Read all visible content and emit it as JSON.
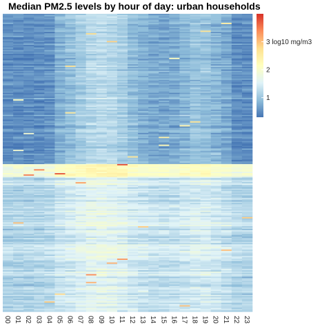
{
  "chart_data": {
    "type": "heatmap",
    "title": "Median PM2.5 levels by hour of day: urban households",
    "xlabel": "",
    "ylabel": "",
    "x": [
      "00",
      "01",
      "02",
      "03",
      "04",
      "05",
      "06",
      "07",
      "08",
      "09",
      "10",
      "11",
      "12",
      "13",
      "14",
      "15",
      "16",
      "17",
      "18",
      "19",
      "20",
      "21",
      "22",
      "23"
    ],
    "rows_description_count": 230,
    "value_range": [
      0.3,
      4.0
    ],
    "colorbar": {
      "ticks": [
        {
          "value": 1,
          "label": "1"
        },
        {
          "value": 2,
          "label": "2"
        },
        {
          "value": 3,
          "label": "3 log10 mg/m3"
        }
      ],
      "colors": [
        "#4575b4",
        "#91bfdb",
        "#e0f3f8",
        "#ffffbf",
        "#fee090",
        "#fc8d59",
        "#d73027"
      ]
    },
    "row_groups": [
      {
        "rows": 116,
        "level": "low",
        "typical_value": 0.7
      },
      {
        "rows": 10,
        "level": "high",
        "typical_value": 2.0
      },
      {
        "rows": 104,
        "level": "medium",
        "typical_value": 1.3
      }
    ],
    "grid": false,
    "legend": "right"
  }
}
